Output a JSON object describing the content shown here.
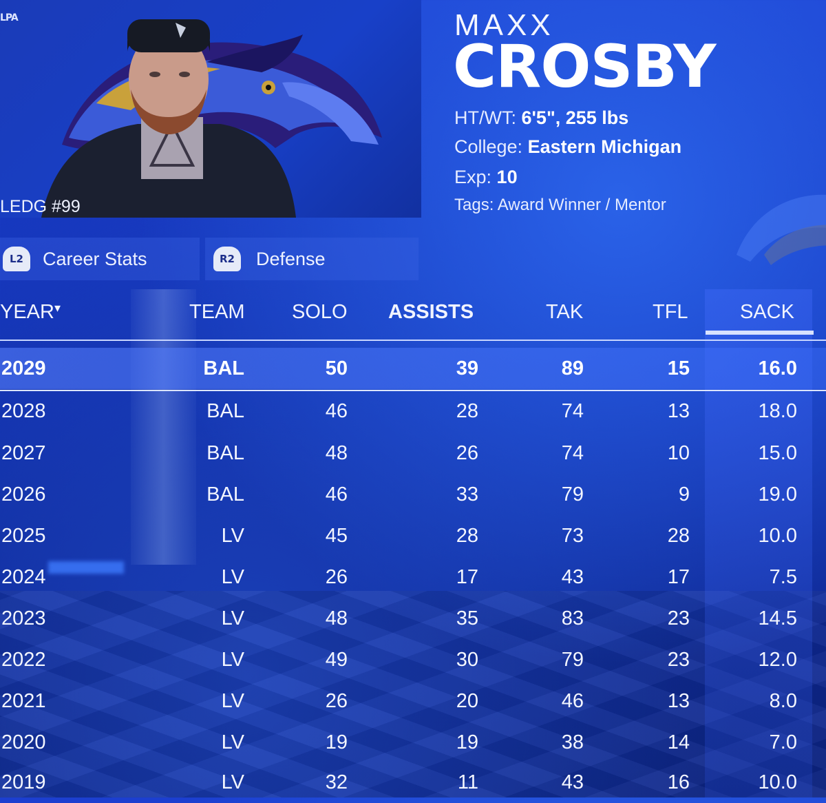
{
  "player": {
    "first_name": "MAXX",
    "last_name": "CROSBY",
    "portrait_caption": "LEDG #99",
    "logo_text": "LPA",
    "ht_wt_label": "HT/WT:",
    "ht_wt_value": "6'5\", 255 lbs",
    "college_label": "College:",
    "college_value": "Eastern Michigan",
    "exp_label": "Exp:",
    "exp_value": "10",
    "tags_label": "Tags:",
    "tags_value": "Award Winner / Mentor"
  },
  "tabs": [
    {
      "trigger": "L2",
      "label": "Career Stats"
    },
    {
      "trigger": "R2",
      "label": "Defense"
    }
  ],
  "columns": {
    "year": "YEAR",
    "year_sort": "▾",
    "team": "TEAM",
    "solo": "SOLO",
    "assists": "ASSISTS",
    "tak": "TAK",
    "tfl": "TFL",
    "sack": "SACK"
  },
  "rows": [
    {
      "year": "2029",
      "team": "BAL",
      "solo": "50",
      "assists": "39",
      "tak": "89",
      "tfl": "15",
      "sack": "16.0"
    },
    {
      "year": "2028",
      "team": "BAL",
      "solo": "46",
      "assists": "28",
      "tak": "74",
      "tfl": "13",
      "sack": "18.0"
    },
    {
      "year": "2027",
      "team": "BAL",
      "solo": "48",
      "assists": "26",
      "tak": "74",
      "tfl": "10",
      "sack": "15.0"
    },
    {
      "year": "2026",
      "team": "BAL",
      "solo": "46",
      "assists": "33",
      "tak": "79",
      "tfl": "9",
      "sack": "19.0"
    },
    {
      "year": "2025",
      "team": "LV",
      "solo": "45",
      "assists": "28",
      "tak": "73",
      "tfl": "28",
      "sack": "10.0"
    },
    {
      "year": "2024",
      "team": "LV",
      "solo": "26",
      "assists": "17",
      "tak": "43",
      "tfl": "17",
      "sack": "7.5"
    },
    {
      "year": "2023",
      "team": "LV",
      "solo": "48",
      "assists": "35",
      "tak": "83",
      "tfl": "23",
      "sack": "14.5"
    },
    {
      "year": "2022",
      "team": "LV",
      "solo": "49",
      "assists": "30",
      "tak": "79",
      "tfl": "23",
      "sack": "12.0"
    },
    {
      "year": "2021",
      "team": "LV",
      "solo": "26",
      "assists": "20",
      "tak": "46",
      "tfl": "13",
      "sack": "8.0"
    },
    {
      "year": "2020",
      "team": "LV",
      "solo": "19",
      "assists": "19",
      "tak": "38",
      "tfl": "14",
      "sack": "7.0"
    },
    {
      "year": "2019",
      "team": "LV",
      "solo": "32",
      "assists": "11",
      "tak": "43",
      "tfl": "16",
      "sack": "10.0"
    }
  ],
  "colors": {
    "background": "#1434b8",
    "selected_row": "#4a78f5",
    "team_gold": "#c9a13b",
    "team_purple": "#2a1d7a"
  }
}
